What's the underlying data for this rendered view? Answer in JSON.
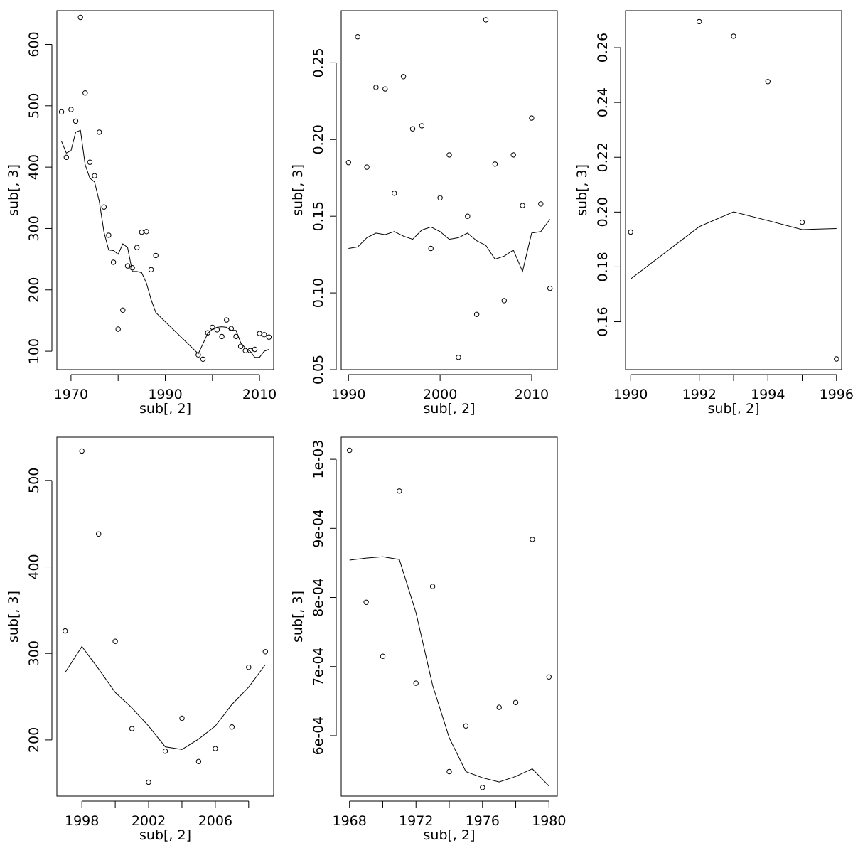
{
  "chart_data": [
    {
      "type": "scatter",
      "title": "",
      "xlabel": "sub[, 2]",
      "ylabel": "sub[, 3]",
      "xlim": [
        1967,
        2013
      ],
      "ylim": [
        70,
        655
      ],
      "xticks": [
        1970,
        1990,
        2010
      ],
      "xtick_labels": [
        "1970",
        "",
        "1990",
        "",
        "2010"
      ],
      "xtick_values": [
        1970,
        1980,
        1990,
        2000,
        2010
      ],
      "yticks": [
        100,
        200,
        300,
        400,
        500,
        600
      ],
      "ytick_labels": [
        "100",
        "200",
        "300",
        "400",
        "500",
        "600"
      ],
      "series": [
        {
          "kind": "points",
          "x": [
            1968,
            1969,
            1970,
            1971,
            1972,
            1973,
            1974,
            1975,
            1976,
            1977,
            1978,
            1979,
            1980,
            1981,
            1982,
            1983,
            1984,
            1985,
            1986,
            1987,
            1988,
            1997,
            1998,
            1999,
            2000,
            2001,
            2002,
            2003,
            2004,
            2005,
            2006,
            2007,
            2008,
            2009,
            2010,
            2011,
            2012
          ],
          "y": [
            490,
            416,
            494,
            475,
            644,
            521,
            408,
            386,
            457,
            335,
            289,
            245,
            136,
            167,
            239,
            236,
            269,
            294,
            295,
            233,
            256,
            94,
            87,
            130,
            139,
            135,
            124,
            151,
            137,
            124,
            108,
            101,
            101,
            103,
            129,
            127,
            123
          ]
        },
        {
          "kind": "line",
          "x": [
            1968,
            1969,
            1970,
            1971,
            1972,
            1973,
            1974,
            1975,
            1976,
            1977,
            1978,
            1979,
            1980,
            1981,
            1982,
            1983,
            1984,
            1985,
            1986,
            1987,
            1988,
            1997,
            1998,
            1999,
            2000,
            2001,
            2002,
            2003,
            2004,
            2005,
            2006,
            2007,
            2008,
            2009,
            2010,
            2011,
            2012
          ],
          "y": [
            442,
            423,
            427,
            457,
            460,
            404,
            382,
            376,
            344,
            294,
            265,
            264,
            258,
            275,
            269,
            230,
            230,
            228,
            211,
            184,
            163,
            96,
            112,
            129,
            136,
            139,
            140,
            139,
            134,
            134,
            114,
            105,
            100,
            90,
            90,
            100,
            103
          ]
        }
      ]
    },
    {
      "type": "scatter",
      "title": "",
      "xlabel": "sub[, 2]",
      "ylabel": "sub[, 3]",
      "xlim": [
        1989.2,
        2012.8
      ],
      "ylim": [
        0.05,
        0.284
      ],
      "xtick_labels": [
        "1990",
        "2000",
        "2010"
      ],
      "xtick_values": [
        1990,
        2000,
        2010
      ],
      "ytick_labels": [
        "0.05",
        "0.10",
        "0.15",
        "0.20",
        "0.25"
      ],
      "ytick_values": [
        0.05,
        0.1,
        0.15,
        0.2,
        0.25
      ],
      "series": [
        {
          "kind": "points",
          "x": [
            1990,
            1991,
            1992,
            1993,
            1994,
            1995,
            1996,
            1997,
            1998,
            1999,
            2000,
            2001,
            2002,
            2003,
            2004,
            2005,
            2006,
            2007,
            2008,
            2009,
            2010,
            2011,
            2012
          ],
          "y": [
            0.185,
            0.267,
            0.182,
            0.234,
            0.233,
            0.165,
            0.241,
            0.207,
            0.209,
            0.129,
            0.162,
            0.19,
            0.058,
            0.15,
            0.086,
            0.278,
            0.184,
            0.095,
            0.19,
            0.157,
            0.214,
            0.158,
            0.103
          ]
        },
        {
          "kind": "line",
          "x": [
            1990,
            1991,
            1992,
            1993,
            1994,
            1995,
            1996,
            1997,
            1998,
            1999,
            2000,
            2001,
            2002,
            2003,
            2004,
            2005,
            2006,
            2007,
            2008,
            2009,
            2010,
            2011,
            2012
          ],
          "y": [
            0.129,
            0.13,
            0.136,
            0.139,
            0.138,
            0.14,
            0.137,
            0.135,
            0.141,
            0.143,
            0.14,
            0.135,
            0.136,
            0.139,
            0.134,
            0.131,
            0.122,
            0.124,
            0.128,
            0.114,
            0.139,
            0.14,
            0.148
          ]
        }
      ]
    },
    {
      "type": "scatter",
      "title": "",
      "xlabel": "sub[, 2]",
      "ylabel": "sub[, 3]",
      "xlim": [
        1989.85,
        1996.15
      ],
      "ylim": [
        0.1425,
        0.2735
      ],
      "xtick_labels": [
        "1990",
        "",
        "1992",
        "",
        "1994",
        "",
        "1996"
      ],
      "xtick_values": [
        1990,
        1991,
        1992,
        1993,
        1994,
        1995,
        1996
      ],
      "ytick_labels": [
        "0.16",
        "0.18",
        "0.20",
        "0.22",
        "0.24",
        "0.26"
      ],
      "ytick_values": [
        0.16,
        0.18,
        0.2,
        0.22,
        0.24,
        0.26
      ],
      "series": [
        {
          "kind": "points",
          "x": [
            1990,
            1992,
            1993,
            1994,
            1995,
            1996
          ],
          "y": [
            0.1927,
            0.2695,
            0.2642,
            0.2476,
            0.1963,
            0.1464
          ]
        },
        {
          "kind": "line",
          "x": [
            1990,
            1992,
            1993,
            1994,
            1995,
            1996
          ],
          "y": [
            0.1756,
            0.1947,
            0.2001,
            0.1969,
            0.1936,
            0.194
          ]
        }
      ]
    },
    {
      "type": "scatter",
      "title": "",
      "xlabel": "sub[, 2]",
      "ylabel": "sub[, 3]",
      "xlim": [
        1996.5,
        2009.5
      ],
      "ylim": [
        135,
        550
      ],
      "xtick_labels": [
        "1998",
        "",
        "2002",
        "",
        "2006",
        ""
      ],
      "xtick_values": [
        1998,
        2000,
        2002,
        2004,
        2006,
        2008
      ],
      "ytick_labels": [
        "200",
        "300",
        "400",
        "500"
      ],
      "ytick_values": [
        200,
        300,
        400,
        500
      ],
      "series": [
        {
          "kind": "points",
          "x": [
            1997,
            1998,
            1999,
            2000,
            2001,
            2002,
            2003,
            2004,
            2005,
            2006,
            2007,
            2008,
            2009
          ],
          "y": [
            326,
            534,
            438,
            314,
            213,
            151,
            187,
            225,
            175,
            190,
            215,
            284,
            302
          ]
        },
        {
          "kind": "line",
          "x": [
            1997,
            1998,
            1999,
            2000,
            2001,
            2002,
            2003,
            2004,
            2005,
            2006,
            2007,
            2008,
            2009
          ],
          "y": [
            278,
            308,
            282,
            255,
            237,
            216,
            192,
            189,
            201,
            216,
            241,
            261,
            287
          ]
        }
      ]
    },
    {
      "type": "scatter",
      "title": "",
      "xlabel": "sub[, 2]",
      "ylabel": "sub[, 3]",
      "xlim": [
        1967.5,
        1980.5
      ],
      "ylim": [
        0.0005125,
        0.001032
      ],
      "xtick_labels": [
        "1968",
        "",
        "1972",
        "",
        "1976",
        "",
        "1980"
      ],
      "xtick_values": [
        1968,
        1970,
        1972,
        1974,
        1976,
        1978,
        1980
      ],
      "ytick_labels": [
        "6e-04",
        "7e-04",
        "8e-04",
        "9e-04",
        "1e-03"
      ],
      "ytick_values": [
        0.0006,
        0.0007,
        0.0008,
        0.0009,
        0.001
      ],
      "series": [
        {
          "kind": "points",
          "x": [
            1968,
            1969,
            1970,
            1971,
            1972,
            1973,
            1974,
            1975,
            1976,
            1977,
            1978,
            1979,
            1980
          ],
          "y": [
            0.001013,
            0.000793,
            0.000715,
            0.000954,
            0.000676,
            0.000816,
            0.000548,
            0.000614,
            0.000525,
            0.000641,
            0.000648,
            0.000884,
            0.000685
          ]
        },
        {
          "kind": "line",
          "x": [
            1968,
            1969,
            1970,
            1971,
            1972,
            1973,
            1974,
            1975,
            1976,
            1977,
            1978,
            1979,
            1980
          ],
          "y": [
            0.000854,
            0.000857,
            0.000859,
            0.000855,
            0.000778,
            0.000673,
            0.000597,
            0.000548,
            0.000539,
            0.000533,
            0.000541,
            0.000552,
            0.000527
          ]
        }
      ]
    }
  ]
}
